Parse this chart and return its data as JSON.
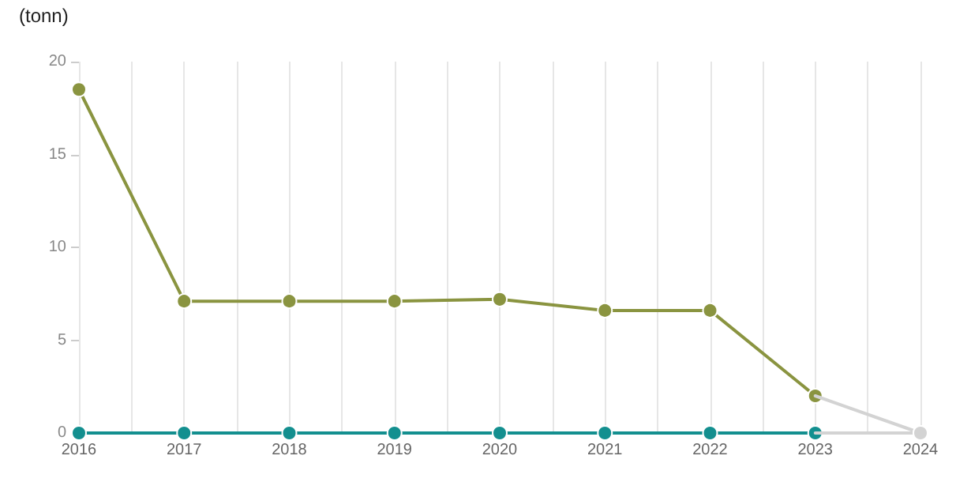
{
  "chart_data": {
    "type": "line",
    "ylabel": "(tonn)",
    "x": [
      2016,
      2017,
      2018,
      2019,
      2020,
      2021,
      2022,
      2023,
      2024
    ],
    "xlim": [
      2016,
      2024
    ],
    "xticks": [
      2016,
      {
        "value": 2016.5,
        "label": null
      },
      2017,
      {
        "value": 2017.5,
        "label": null
      },
      2018,
      {
        "value": 2018.5,
        "label": null
      },
      2019,
      {
        "value": 2019.5,
        "label": null
      },
      2020,
      {
        "value": 2020.5,
        "label": null
      },
      2021,
      {
        "value": 2021.5,
        "label": null
      },
      2022,
      {
        "value": 2022.5,
        "label": null
      },
      2023,
      {
        "value": 2023.5,
        "label": null
      },
      2024
    ],
    "ylim": [
      0,
      20
    ],
    "yticks": [
      0,
      5,
      10,
      15,
      20
    ],
    "grid": "x",
    "marker": "circle",
    "line_style": "solid",
    "series": [
      {
        "color": "#d3d3d3",
        "values": [
          null,
          null,
          null,
          null,
          null,
          null,
          null,
          2.0,
          0
        ]
      },
      {
        "color": "#d3d3d3",
        "values": [
          null,
          null,
          null,
          null,
          null,
          null,
          null,
          0,
          0
        ]
      },
      {
        "color": "#8a9440",
        "values": [
          18.5,
          7.1,
          7.1,
          7.1,
          7.2,
          6.6,
          6.6,
          2.0,
          null
        ]
      },
      {
        "color": "#138f8f",
        "values": [
          0,
          0,
          0,
          0,
          0,
          0,
          0,
          0,
          null
        ]
      }
    ]
  }
}
